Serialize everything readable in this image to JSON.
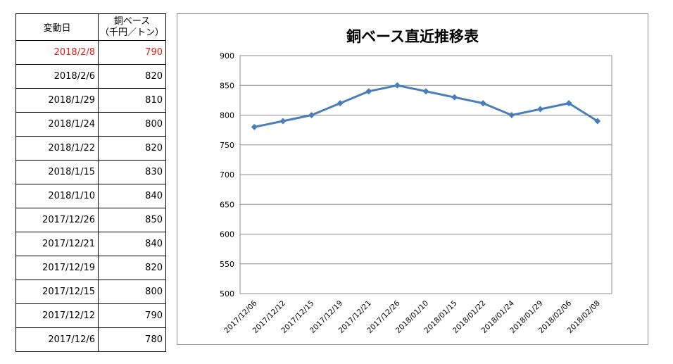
{
  "table": {
    "header": {
      "date": "変動日",
      "price_line1": "銅ベース",
      "price_line2": "（千円／トン）"
    },
    "rows": [
      {
        "date": "2018/2/8",
        "value": "790",
        "highlight": true
      },
      {
        "date": "2018/2/6",
        "value": "820"
      },
      {
        "date": "2018/1/29",
        "value": "810"
      },
      {
        "date": "2018/1/24",
        "value": "800"
      },
      {
        "date": "2018/1/22",
        "value": "820"
      },
      {
        "date": "2018/1/15",
        "value": "830"
      },
      {
        "date": "2018/1/10",
        "value": "840"
      },
      {
        "date": "2017/12/26",
        "value": "850"
      },
      {
        "date": "2017/12/21",
        "value": "840"
      },
      {
        "date": "2017/12/19",
        "value": "820"
      },
      {
        "date": "2017/12/15",
        "value": "800"
      },
      {
        "date": "2017/12/12",
        "value": "790"
      },
      {
        "date": "2017/12/6",
        "value": "780"
      }
    ],
    "highlight_color": "#e0201b"
  },
  "chart_data": {
    "type": "line",
    "title": "銅ベース直近推移表",
    "x": [
      "2017/12/06",
      "2017/12/12",
      "2017/12/15",
      "2017/12/19",
      "2017/12/21",
      "2017/12/26",
      "2018/01/10",
      "2018/01/15",
      "2018/01/22",
      "2018/01/24",
      "2018/01/29",
      "2018/02/06",
      "2018/02/08"
    ],
    "series": [
      {
        "values": [
          780,
          790,
          800,
          820,
          840,
          850,
          840,
          830,
          820,
          800,
          810,
          820,
          790
        ],
        "color": "#4a7ebb"
      }
    ],
    "ylim": [
      500,
      900
    ],
    "yticks": [
      500,
      550,
      600,
      650,
      700,
      750,
      800,
      850,
      900
    ],
    "grid": true,
    "marker": "diamond",
    "legend": "none"
  }
}
